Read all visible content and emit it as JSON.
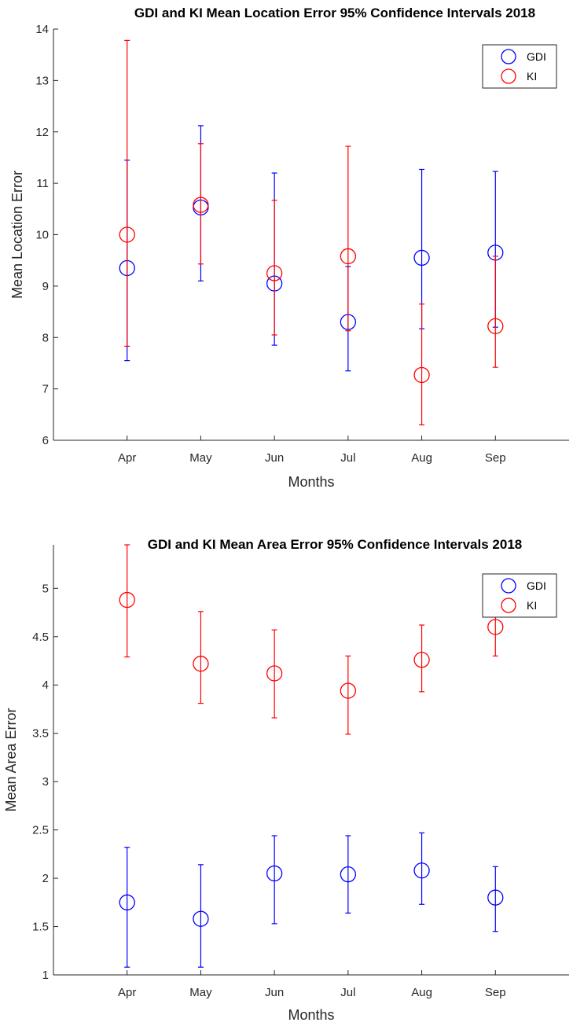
{
  "chart_data": [
    {
      "type": "errorbar",
      "title": "GDI and KI Mean Location Error 95% Confidence Intervals 2018",
      "xlabel": "Months",
      "ylabel": "Mean Location Error",
      "categories": [
        "Apr",
        "May",
        "Jun",
        "Jul",
        "Aug",
        "Sep"
      ],
      "xlim": [
        0,
        7
      ],
      "ylim": [
        6,
        14
      ],
      "yticks": [
        6,
        7,
        8,
        9,
        10,
        11,
        12,
        13,
        14
      ],
      "grid": false,
      "legend_position": "top-right",
      "series": [
        {
          "name": "GDI",
          "color": "#0000ff",
          "values": [
            9.35,
            10.53,
            9.05,
            8.3,
            9.55,
            9.65
          ],
          "lower": [
            7.55,
            9.1,
            7.85,
            7.35,
            8.17,
            8.2
          ],
          "upper": [
            11.45,
            12.12,
            11.2,
            9.38,
            11.27,
            11.23
          ]
        },
        {
          "name": "KI",
          "color": "#ff0000",
          "values": [
            10.0,
            10.58,
            9.25,
            9.58,
            7.27,
            8.22
          ],
          "lower": [
            7.83,
            9.43,
            8.05,
            8.13,
            6.3,
            7.42
          ],
          "upper": [
            13.78,
            11.77,
            10.67,
            11.72,
            8.65,
            9.58
          ]
        }
      ]
    },
    {
      "type": "errorbar",
      "title": "GDI and KI Mean Area Error 95% Confidence Intervals 2018",
      "xlabel": "Months",
      "ylabel": "Mean Area Error",
      "categories": [
        "Apr",
        "May",
        "Jun",
        "Jul",
        "Aug",
        "Sep"
      ],
      "xlim": [
        0,
        7
      ],
      "ylim": [
        1,
        5.45
      ],
      "yticks": [
        1,
        1.5,
        2,
        2.5,
        3,
        3.5,
        4,
        4.5,
        5
      ],
      "grid": false,
      "legend_position": "top-right",
      "series": [
        {
          "name": "GDI",
          "color": "#0000ff",
          "values": [
            1.75,
            1.58,
            2.05,
            2.04,
            2.08,
            1.8
          ],
          "lower": [
            1.08,
            1.08,
            1.53,
            1.64,
            1.73,
            1.45
          ],
          "upper": [
            2.32,
            2.14,
            2.44,
            2.44,
            2.47,
            2.12
          ]
        },
        {
          "name": "KI",
          "color": "#ff0000",
          "values": [
            4.88,
            4.22,
            4.12,
            3.94,
            4.26,
            4.6
          ],
          "lower": [
            4.29,
            3.81,
            3.66,
            3.49,
            3.93,
            4.3
          ],
          "upper": [
            5.45,
            4.76,
            4.57,
            4.3,
            4.62,
            4.89
          ]
        }
      ]
    }
  ]
}
